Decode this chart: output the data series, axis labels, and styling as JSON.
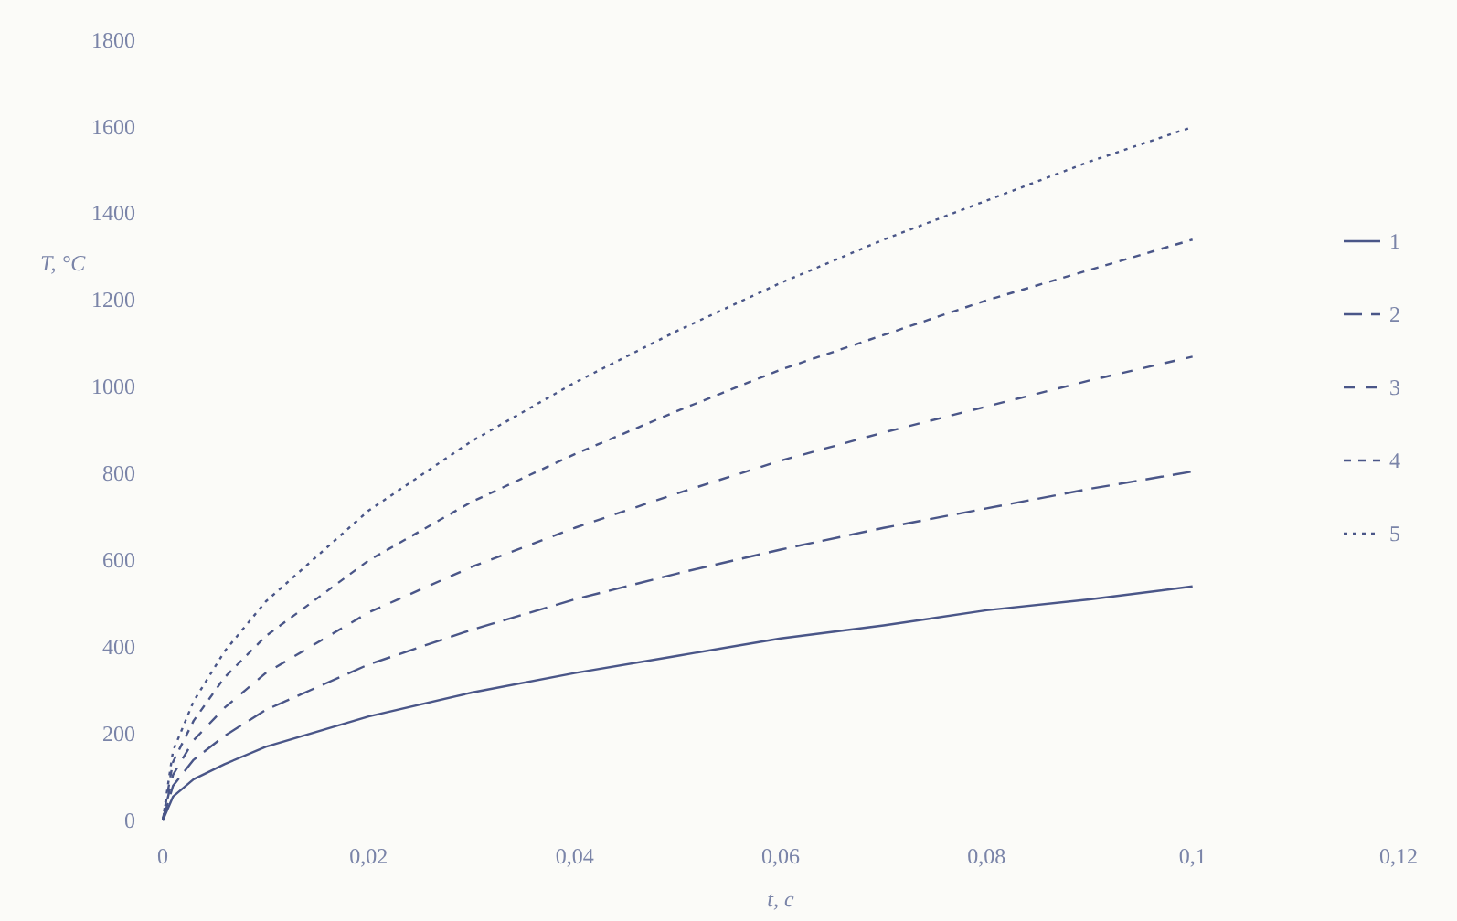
{
  "chart_data": {
    "type": "line",
    "xlabel": "t, с",
    "ylabel": "T, °C",
    "x": [
      0,
      0.001,
      0.003,
      0.006,
      0.01,
      0.02,
      0.03,
      0.04,
      0.05,
      0.06,
      0.07,
      0.08,
      0.09,
      0.1
    ],
    "series": [
      {
        "name": "1",
        "color": "#4a5688",
        "line_style": "solid",
        "values": [
          0,
          55,
          95,
          130,
          170,
          240,
          295,
          340,
          380,
          420,
          450,
          485,
          510,
          540
        ]
      },
      {
        "name": "2",
        "color": "#4a5688",
        "line_style": "dashed",
        "values": [
          0,
          80,
          140,
          195,
          255,
          360,
          440,
          510,
          570,
          625,
          675,
          720,
          765,
          805
        ]
      },
      {
        "name": "3",
        "color": "#4a5688",
        "line_style": "dashed",
        "values": [
          0,
          105,
          185,
          260,
          340,
          480,
          585,
          675,
          755,
          830,
          895,
          955,
          1015,
          1070
        ]
      },
      {
        "name": "4",
        "color": "#4a5688",
        "line_style": "dashed",
        "values": [
          0,
          135,
          230,
          330,
          425,
          600,
          735,
          845,
          945,
          1040,
          1120,
          1200,
          1270,
          1340
        ]
      },
      {
        "name": "5",
        "color": "#4a5688",
        "line_style": "dotted",
        "values": [
          0,
          160,
          275,
          390,
          505,
          715,
          875,
          1010,
          1130,
          1240,
          1340,
          1430,
          1520,
          1600
        ]
      }
    ],
    "xlim": [
      0,
      0.12
    ],
    "xticks": [
      0,
      {
        "value": 0.02,
        "label": "0,02"
      },
      {
        "value": 0.04,
        "label": "0,04"
      },
      {
        "value": 0.06,
        "label": "0,06"
      },
      {
        "value": 0.08,
        "label": "0,08"
      },
      {
        "value": 0.1,
        "label": "0,1"
      },
      {
        "value": 0.12,
        "label": "0,12"
      }
    ],
    "ylim": [
      0,
      1800
    ],
    "yticks": [
      0,
      200,
      400,
      600,
      800,
      1000,
      1200,
      1400,
      1600,
      1800
    ],
    "legend": "right",
    "marker": "none"
  }
}
